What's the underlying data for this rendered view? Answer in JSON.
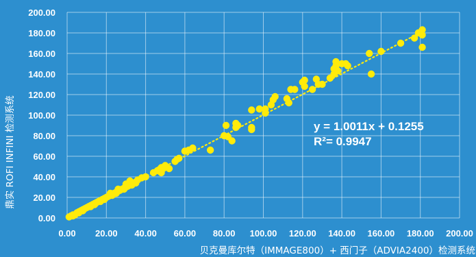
{
  "chart_data": {
    "type": "scatter",
    "xlabel": "贝克曼库尔特（IMMAGE800）+ 西门子（ADVIA2400）检测系统",
    "ylabel": "鼎实 ROFI INFINI 检测系统",
    "xlim": [
      0,
      200
    ],
    "ylim": [
      0,
      200
    ],
    "x_ticks": [
      "0.00",
      "20.00",
      "40.00",
      "60.00",
      "80.00",
      "100.00",
      "120.00",
      "140.00",
      "160.00",
      "180.00",
      "200.00"
    ],
    "y_ticks": [
      "0.00",
      "20.00",
      "40.00",
      "60.00",
      "80.00",
      "100.00",
      "120.00",
      "140.00",
      "160.00",
      "180.00",
      "200.00"
    ],
    "grid": true,
    "colors": {
      "background": "#2d8fcf",
      "points": "#ffeb0a",
      "trendline": "#ffeb0a",
      "text": "#ffffff"
    },
    "trendline": {
      "slope": 1.0011,
      "intercept": 0.1255,
      "style": "dotted"
    },
    "equation": "y = 1.0011x + 0.1255",
    "r_squared": "R²= 0.9947",
    "points": [
      [
        1,
        1
      ],
      [
        2,
        2
      ],
      [
        3,
        3
      ],
      [
        4,
        3
      ],
      [
        5,
        5
      ],
      [
        6,
        6
      ],
      [
        7,
        7
      ],
      [
        8,
        8
      ],
      [
        9,
        9
      ],
      [
        10,
        10
      ],
      [
        11,
        11
      ],
      [
        12,
        12
      ],
      [
        13,
        13
      ],
      [
        14,
        14
      ],
      [
        15,
        15
      ],
      [
        16,
        16
      ],
      [
        17,
        17
      ],
      [
        18,
        18
      ],
      [
        19,
        19
      ],
      [
        20,
        20
      ],
      [
        21,
        21
      ],
      [
        22,
        22
      ],
      [
        23,
        23
      ],
      [
        24,
        24
      ],
      [
        25,
        25
      ],
      [
        26,
        26
      ],
      [
        27,
        27
      ],
      [
        28,
        28
      ],
      [
        29,
        29
      ],
      [
        30,
        30
      ],
      [
        31,
        31
      ],
      [
        32,
        32
      ],
      [
        33,
        33
      ],
      [
        34,
        34
      ],
      [
        35,
        35
      ],
      [
        36,
        37
      ],
      [
        38,
        39
      ],
      [
        40,
        40
      ],
      [
        3,
        2
      ],
      [
        6,
        5
      ],
      [
        8,
        7
      ],
      [
        12,
        11
      ],
      [
        14,
        13
      ],
      [
        17,
        16
      ],
      [
        19,
        18
      ],
      [
        23,
        22
      ],
      [
        25,
        24
      ],
      [
        27,
        27
      ],
      [
        29,
        28
      ],
      [
        31,
        31
      ],
      [
        33,
        32
      ],
      [
        35,
        34
      ],
      [
        22,
        24
      ],
      [
        26,
        28
      ],
      [
        30,
        33
      ],
      [
        32,
        36
      ],
      [
        44,
        44
      ],
      [
        46,
        46
      ],
      [
        47,
        47
      ],
      [
        48,
        49
      ],
      [
        49,
        48
      ],
      [
        50,
        51
      ],
      [
        52,
        48
      ],
      [
        48,
        44
      ],
      [
        55,
        55
      ],
      [
        56,
        57
      ],
      [
        57,
        58
      ],
      [
        60,
        65
      ],
      [
        62,
        66
      ],
      [
        64,
        68
      ],
      [
        73,
        66
      ],
      [
        80,
        80
      ],
      [
        81,
        90
      ],
      [
        82,
        79
      ],
      [
        84,
        75
      ],
      [
        86,
        88
      ],
      [
        86,
        92
      ],
      [
        87,
        90
      ],
      [
        94,
        86
      ],
      [
        94,
        88
      ],
      [
        94,
        105
      ],
      [
        98,
        106
      ],
      [
        101,
        102
      ],
      [
        101,
        106
      ],
      [
        104,
        110
      ],
      [
        105,
        115
      ],
      [
        106,
        118
      ],
      [
        112,
        116
      ],
      [
        113,
        112
      ],
      [
        114,
        125
      ],
      [
        116,
        125
      ],
      [
        120,
        132
      ],
      [
        121,
        128
      ],
      [
        121,
        134
      ],
      [
        125,
        125
      ],
      [
        127,
        135
      ],
      [
        128,
        130
      ],
      [
        130,
        130
      ],
      [
        134,
        136
      ],
      [
        136,
        140
      ],
      [
        136,
        145
      ],
      [
        137,
        152
      ],
      [
        137,
        148
      ],
      [
        138,
        143
      ],
      [
        140,
        150
      ],
      [
        142,
        150
      ],
      [
        143,
        148
      ],
      [
        154,
        160
      ],
      [
        155,
        140
      ],
      [
        160,
        162
      ],
      [
        170,
        170
      ],
      [
        177,
        175
      ],
      [
        179,
        180
      ],
      [
        181,
        183
      ],
      [
        181,
        178
      ],
      [
        181,
        166
      ]
    ]
  }
}
